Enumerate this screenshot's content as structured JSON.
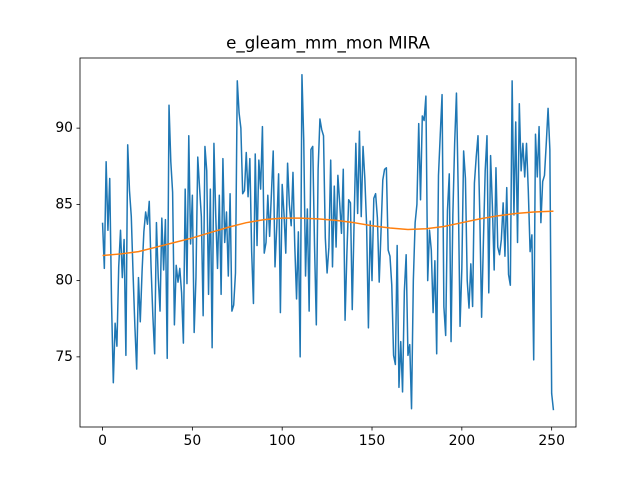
{
  "chart_data": {
    "type": "line",
    "title": "e_gleam_mm_mon MIRA",
    "xlim": [
      -12.55,
      263.55
    ],
    "ylim": [
      70.4,
      94.6
    ],
    "xticks": [
      0,
      50,
      100,
      150,
      200,
      250
    ],
    "yticks": [
      75,
      80,
      85,
      90
    ],
    "series": [
      {
        "color": "#1f77b4",
        "x": [
          0,
          1,
          2,
          3,
          4,
          5,
          6,
          7,
          8,
          9,
          10,
          11,
          12,
          13,
          14,
          15,
          16,
          17,
          18,
          19,
          20,
          21,
          22,
          23,
          24,
          25,
          26,
          27,
          28,
          29,
          30,
          31,
          32,
          33,
          34,
          35,
          36,
          37,
          38,
          39,
          40,
          41,
          42,
          43,
          44,
          45,
          46,
          47,
          48,
          49,
          50,
          51,
          52,
          53,
          54,
          55,
          56,
          57,
          58,
          59,
          60,
          61,
          62,
          63,
          64,
          65,
          66,
          67,
          68,
          69,
          70,
          71,
          72,
          73,
          74,
          75,
          76,
          77,
          78,
          79,
          80,
          81,
          82,
          83,
          84,
          85,
          86,
          87,
          88,
          89,
          90,
          91,
          92,
          93,
          94,
          95,
          96,
          97,
          98,
          99,
          100,
          101,
          102,
          103,
          104,
          105,
          106,
          107,
          108,
          109,
          110,
          111,
          112,
          113,
          114,
          115,
          116,
          117,
          118,
          119,
          120,
          121,
          122,
          123,
          124,
          125,
          126,
          127,
          128,
          129,
          130,
          131,
          132,
          133,
          134,
          135,
          136,
          137,
          138,
          139,
          140,
          141,
          142,
          143,
          144,
          145,
          146,
          147,
          148,
          149,
          150,
          151,
          152,
          153,
          154,
          155,
          156,
          157,
          158,
          159,
          160,
          161,
          162,
          163,
          164,
          165,
          166,
          167,
          168,
          169,
          170,
          171,
          172,
          173,
          174,
          175,
          176,
          177,
          178,
          179,
          180,
          181,
          182,
          183,
          184,
          185,
          186,
          187,
          188,
          189,
          190,
          191,
          192,
          193,
          194,
          195,
          196,
          197,
          198,
          199,
          200,
          201,
          202,
          203,
          204,
          205,
          206,
          207,
          208,
          209,
          210,
          211,
          212,
          213,
          214,
          215,
          216,
          217,
          218,
          219,
          220,
          221,
          222,
          223,
          224,
          225,
          226,
          227,
          228,
          229,
          230,
          231,
          232,
          233,
          234,
          235,
          236,
          237,
          238,
          239,
          240,
          241,
          242,
          243,
          244,
          245,
          246,
          247,
          248,
          249,
          250,
          251
        ],
        "values": [
          83.8,
          80.8,
          87.8,
          83.3,
          86.7,
          78.6,
          73.3,
          77.2,
          75.7,
          80.9,
          83.3,
          80.2,
          82.7,
          75.1,
          88.9,
          85.9,
          84.2,
          80.4,
          77.0,
          74.2,
          80.2,
          77.3,
          80.6,
          83.2,
          84.5,
          83.7,
          85.2,
          80.9,
          77.7,
          75.2,
          83.8,
          80.2,
          78.0,
          84.1,
          80.7,
          84.0,
          74.9,
          91.5,
          87.8,
          85.8,
          77.1,
          81.0,
          79.9,
          80.8,
          79.2,
          75.9,
          86.0,
          79.8,
          89.5,
          82.4,
          85.6,
          76.6,
          80.2,
          88.1,
          86.1,
          84.2,
          77.7,
          88.8,
          87.2,
          79.1,
          86.0,
          75.6,
          89.0,
          84.3,
          80.8,
          85.6,
          79.1,
          88.0,
          82.5,
          84.5,
          80.3,
          85.7,
          78.0,
          78.4,
          80.5,
          93.1,
          91.0,
          90.0,
          85.7,
          85.9,
          88.4,
          85.5,
          88.0,
          81.9,
          78.5,
          88.3,
          82.3,
          87.9,
          86.0,
          90.1,
          81.8,
          82.5,
          85.6,
          82.9,
          85.7,
          88.5,
          80.9,
          83.6,
          87.0,
          77.9,
          86.3,
          84.4,
          81.8,
          87.7,
          85.0,
          83.6,
          87.1,
          82.3,
          78.8,
          83.2,
          75.0,
          93.5,
          89.2,
          80.3,
          84.7,
          78.0,
          88.6,
          88.8,
          82.3,
          77.1,
          87.3,
          90.6,
          89.9,
          89.5,
          82.8,
          80.5,
          82.2,
          87.9,
          80.9,
          86.2,
          82.2,
          86.9,
          85.1,
          83.1,
          87.3,
          77.4,
          81.7,
          85.3,
          85.1,
          78.1,
          83.7,
          89.0,
          84.4,
          89.8,
          84.2,
          88.8,
          86.7,
          83.6,
          76.9,
          83.9,
          80.0,
          85.4,
          85.7,
          84.1,
          79.9,
          83.2,
          86.6,
          87.3,
          87.4,
          82.0,
          81.6,
          79.7,
          75.1,
          74.5,
          82.3,
          73.0,
          76.0,
          72.7,
          79.3,
          81.7,
          75.1,
          75.8,
          71.6,
          80.0,
          83.8,
          85.0,
          90.3,
          85.3,
          90.8,
          90.5,
          92.1,
          80.0,
          83.3,
          82.0,
          77.9,
          81.3,
          75.2,
          86.9,
          89.6,
          92.2,
          78.3,
          76.4,
          84.6,
          87.0,
          76.0,
          84.3,
          89.0,
          92.3,
          85.8,
          77.0,
          80.8,
          88.5,
          86.7,
          80.0,
          78.2,
          81.1,
          78.3,
          86.4,
          88.1,
          89.5,
          84.3,
          77.6,
          82.5,
          87.2,
          89.5,
          79.2,
          88.2,
          84.9,
          80.7,
          87.4,
          82.2,
          81.7,
          82.7,
          85.1,
          81.6,
          86.1,
          80.4,
          79.7,
          93.1,
          84.3,
          90.4,
          82.5,
          91.6,
          87.2,
          89.0,
          86.8,
          89.0,
          85.9,
          81.9,
          83.0,
          74.8,
          89.6,
          86.8,
          90.1,
          83.8,
          86.5,
          86.9,
          89.0,
          91.3,
          88.6,
          72.6,
          71.5
        ]
      },
      {
        "color": "#ff7f0e",
        "x": [
          0,
          10,
          20,
          30,
          40,
          50,
          60,
          70,
          80,
          90,
          100,
          110,
          120,
          130,
          140,
          150,
          160,
          170,
          180,
          190,
          200,
          210,
          220,
          230,
          240,
          250,
          251
        ],
        "values": [
          81.65,
          81.75,
          81.9,
          82.2,
          82.5,
          82.8,
          83.15,
          83.5,
          83.8,
          84.0,
          84.1,
          84.1,
          84.05,
          83.95,
          83.8,
          83.6,
          83.45,
          83.35,
          83.4,
          83.55,
          83.8,
          84.05,
          84.25,
          84.4,
          84.5,
          84.55,
          84.55
        ]
      }
    ]
  }
}
